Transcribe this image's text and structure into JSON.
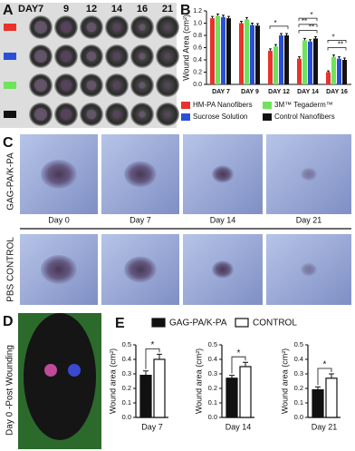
{
  "panel_labels": [
    "A",
    "B",
    "C",
    "D",
    "E"
  ],
  "panel_a": {
    "header": "DAY",
    "days": [
      "7",
      "9",
      "12",
      "14",
      "16",
      "21"
    ]
  },
  "panel_c": {
    "groups": [
      "GAG-PA/K-PA",
      "PBS CONTROL"
    ],
    "days": [
      "Day 0",
      "Day 7",
      "Day 14",
      "Day 21"
    ]
  },
  "panel_d": {
    "caption": "Day 0 -Post Wounding"
  },
  "chart_data": [
    {
      "type": "grouped_bar",
      "ylabel": "Wound Area (cm²)",
      "categories": [
        "DAY 7",
        "DAY 9",
        "DAY 12",
        "DAY 14",
        "DAY 16"
      ],
      "series": [
        {
          "name": "HM-PA Nanofibers",
          "color": "#e8322b",
          "values": [
            1.08,
            1.0,
            0.55,
            0.42,
            0.2
          ],
          "errors": [
            0.03,
            0.03,
            0.03,
            0.03,
            0.02
          ]
        },
        {
          "name": "3M™ Tegaderm™",
          "color": "#6fe35a",
          "values": [
            1.12,
            1.06,
            0.62,
            0.72,
            0.45
          ],
          "errors": [
            0.03,
            0.03,
            0.03,
            0.03,
            0.03
          ]
        },
        {
          "name": "Sucrose Solution",
          "color": "#2a4fd6",
          "values": [
            1.1,
            0.97,
            0.8,
            0.7,
            0.42
          ],
          "errors": [
            0.03,
            0.03,
            0.03,
            0.03,
            0.03
          ]
        },
        {
          "name": "Control Nanofibers",
          "color": "#111111",
          "values": [
            1.08,
            0.96,
            0.8,
            0.75,
            0.4
          ],
          "errors": [
            0.03,
            0.03,
            0.03,
            0.03,
            0.03
          ]
        }
      ],
      "ylim": [
        0,
        1.2
      ],
      "yticks": [
        {
          "value": 0,
          "label": "0.0"
        },
        0.2,
        0.4,
        0.6,
        0.8,
        {
          "value": 1,
          "label": "1.0"
        },
        1.2
      ],
      "annotations": [
        "*",
        "*",
        "**",
        "**",
        "*",
        "**"
      ]
    },
    {
      "type": "pair_bar",
      "xlabel": "Day 7",
      "ylabel": "Wound area (cm²)",
      "series": [
        {
          "name": "GAG-PA/K-PA",
          "color": "#111111",
          "values": [
            0.29
          ],
          "errors": [
            0.03
          ]
        },
        {
          "name": "CONTROL",
          "color": "#ffffff",
          "values": [
            0.4
          ],
          "errors": [
            0.035
          ]
        }
      ],
      "ylim": [
        0,
        0.5
      ],
      "yticks": [
        {
          "value": 0,
          "label": "0.0"
        },
        0.1,
        0.2,
        0.3,
        0.4,
        0.5
      ],
      "annotations": [
        "*"
      ]
    },
    {
      "type": "pair_bar",
      "xlabel": "Day 14",
      "ylabel": "Wound area (cm²)",
      "series": [
        {
          "color": "#111111",
          "values": [
            0.27
          ],
          "errors": [
            0.02
          ]
        },
        {
          "color": "#ffffff",
          "values": [
            0.35
          ],
          "errors": [
            0.03
          ]
        }
      ],
      "ylim": [
        0,
        0.5
      ],
      "yticks": [
        {
          "value": 0,
          "label": "0.0"
        },
        0.1,
        0.2,
        0.3,
        0.4,
        0.5
      ],
      "annotations": [
        "*"
      ]
    },
    {
      "type": "pair_bar",
      "xlabel": "Day 21",
      "ylabel": "Wound area (cm²)",
      "series": [
        {
          "color": "#111111",
          "values": [
            0.19
          ],
          "errors": [
            0.02
          ]
        },
        {
          "color": "#ffffff",
          "values": [
            0.27
          ],
          "errors": [
            0.03
          ]
        }
      ],
      "ylim": [
        0,
        0.5
      ],
      "yticks": [
        {
          "value": 0,
          "label": "0.0"
        },
        0.1,
        0.2,
        0.3,
        0.4,
        0.5
      ],
      "annotations": [
        "*"
      ]
    }
  ]
}
